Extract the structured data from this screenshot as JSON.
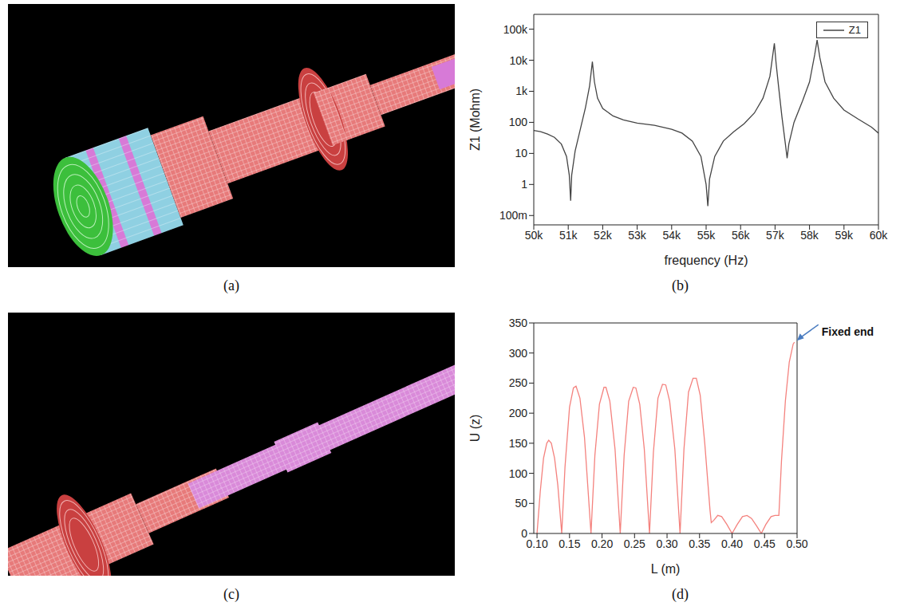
{
  "panel_labels": [
    "(a)",
    "(b)",
    "(c)",
    "(d)"
  ],
  "chart_data": [
    {
      "type": "line",
      "xlabel": "frequency (Hz)",
      "ylabel": "Z1 (Mohm)",
      "log": "y",
      "legend": "upper right",
      "xlim": [
        50000,
        60000
      ],
      "xticks": [
        {
          "value": 50000,
          "label": "50k"
        },
        {
          "value": 51000,
          "label": "51k"
        },
        {
          "value": 52000,
          "label": "52k"
        },
        {
          "value": 53000,
          "label": "53k"
        },
        {
          "value": 54000,
          "label": "54k"
        },
        {
          "value": 55000,
          "label": "55k"
        },
        {
          "value": 56000,
          "label": "56k"
        },
        {
          "value": 57000,
          "label": "57k"
        },
        {
          "value": 58000,
          "label": "58k"
        },
        {
          "value": 59000,
          "label": "59k"
        },
        {
          "value": 60000,
          "label": "60k"
        }
      ],
      "ylim": [
        0.05,
        300000
      ],
      "yticks": [
        {
          "value": 0.1,
          "label": "100m"
        },
        1,
        10,
        100,
        {
          "value": 1000,
          "label": "1k"
        },
        {
          "value": 10000,
          "label": "10k"
        },
        {
          "value": 100000,
          "label": "100k"
        }
      ],
      "x": [
        50000,
        50200,
        50400,
        50600,
        50800,
        50950,
        51030,
        51070,
        51100,
        51200,
        51350,
        51500,
        51620,
        51700,
        51760,
        51850,
        52000,
        52300,
        52600,
        53000,
        53500,
        54000,
        54300,
        54600,
        54850,
        55000,
        55050,
        55100,
        55250,
        55500,
        55800,
        56100,
        56400,
        56650,
        56850,
        56950,
        56980,
        57030,
        57100,
        57200,
        57300,
        57350,
        57400,
        57550,
        57800,
        58000,
        58150,
        58220,
        58300,
        58450,
        58700,
        59000,
        59400,
        59800,
        60000
      ],
      "series": [
        {
          "name": "Z1",
          "color": "#444444",
          "values": [
            55,
            50,
            42,
            33,
            20,
            8,
            2,
            0.3,
            2,
            12,
            60,
            300,
            1500,
            9000,
            2000,
            600,
            280,
            160,
            120,
            95,
            80,
            60,
            45,
            25,
            8,
            1,
            0.2,
            1.5,
            8,
            25,
            50,
            90,
            200,
            600,
            3000,
            20000,
            35000,
            8000,
            1500,
            150,
            20,
            7,
            20,
            100,
            500,
            2000,
            15000,
            45000,
            12000,
            2000,
            600,
            250,
            130,
            70,
            45
          ]
        }
      ]
    },
    {
      "type": "line",
      "xlabel": "L (m)",
      "ylabel": "U (z)",
      "xlim": [
        0.095,
        0.5
      ],
      "xticks": [
        {
          "value": 0.1,
          "label": "0.10"
        },
        0.15,
        {
          "value": 0.2,
          "label": "0.20"
        },
        0.25,
        {
          "value": 0.3,
          "label": "0.30"
        },
        0.35,
        {
          "value": 0.4,
          "label": "0.40"
        },
        0.45,
        {
          "value": 0.5,
          "label": "0.50"
        }
      ],
      "ylim": [
        0,
        350
      ],
      "yticks": [
        0,
        50,
        100,
        150,
        200,
        250,
        300,
        350
      ],
      "x": [
        0.1,
        0.105,
        0.11,
        0.115,
        0.118,
        0.122,
        0.127,
        0.132,
        0.138,
        0.143,
        0.15,
        0.156,
        0.16,
        0.166,
        0.173,
        0.183,
        0.189,
        0.196,
        0.203,
        0.206,
        0.212,
        0.22,
        0.228,
        0.234,
        0.241,
        0.248,
        0.252,
        0.258,
        0.265,
        0.273,
        0.279,
        0.286,
        0.293,
        0.298,
        0.304,
        0.312,
        0.32,
        0.326,
        0.333,
        0.34,
        0.345,
        0.351,
        0.358,
        0.366,
        0.368,
        0.372,
        0.378,
        0.384,
        0.392,
        0.4,
        0.408,
        0.416,
        0.423,
        0.43,
        0.438,
        0.445,
        0.452,
        0.46,
        0.466,
        0.472,
        0.476,
        0.482,
        0.488,
        0.494,
        0.496
      ],
      "series": [
        {
          "color": "#f4827e",
          "values": [
            0,
            70,
            125,
            150,
            155,
            150,
            125,
            80,
            0,
            110,
            210,
            242,
            245,
            225,
            160,
            0,
            130,
            215,
            243,
            243,
            220,
            140,
            0,
            130,
            220,
            243,
            242,
            215,
            140,
            0,
            135,
            225,
            248,
            247,
            220,
            140,
            0,
            140,
            235,
            258,
            258,
            230,
            150,
            40,
            18,
            22,
            30,
            28,
            15,
            0,
            15,
            28,
            30,
            25,
            12,
            0,
            15,
            28,
            30,
            30,
            120,
            220,
            285,
            315,
            318
          ]
        }
      ],
      "annotations": [
        {
          "text": "Fixed end",
          "x": 0.496,
          "y": 318
        }
      ]
    }
  ]
}
